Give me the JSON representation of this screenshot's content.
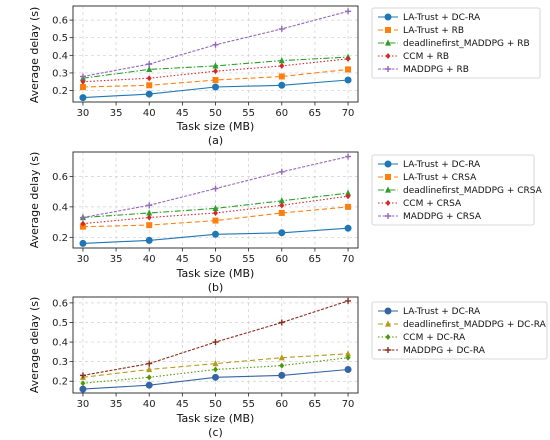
{
  "chart_data": [
    {
      "type": "line",
      "caption": "(a)",
      "xlabel": "Task size (MB)",
      "ylabel": "Average delay (s)",
      "x": [
        30,
        40,
        50,
        60,
        70
      ],
      "xticks": [
        30,
        35,
        40,
        45,
        50,
        55,
        60,
        65,
        70
      ],
      "xlim": [
        28.5,
        71.5
      ],
      "yticks": [
        0.2,
        0.3,
        0.4,
        0.5,
        0.6
      ],
      "ylim": [
        0.135,
        0.68
      ],
      "grid": true,
      "legend_position": "right",
      "series": [
        {
          "name": "LA-Trust + DC-RA",
          "color": "#1f77b4",
          "marker": "circle",
          "dash": "solid",
          "values": [
            0.16,
            0.18,
            0.22,
            0.23,
            0.26
          ]
        },
        {
          "name": "LA-Trust + RB",
          "color": "#ff7f0e",
          "marker": "square",
          "dash": "dashed",
          "values": [
            0.22,
            0.23,
            0.26,
            0.28,
            0.32
          ]
        },
        {
          "name": "deadlinefirst_MADDPG + RB",
          "color": "#2ca02c",
          "marker": "triangle",
          "dash": "dashdot",
          "values": [
            0.27,
            0.32,
            0.34,
            0.37,
            0.39
          ]
        },
        {
          "name": "CCM + RB",
          "color": "#d62728",
          "marker": "diamond",
          "dash": "dotted",
          "values": [
            0.25,
            0.27,
            0.31,
            0.34,
            0.38
          ]
        },
        {
          "name": "MADDPG + RB",
          "color": "#9467bd",
          "marker": "plus",
          "dash": "densedash",
          "values": [
            0.28,
            0.35,
            0.46,
            0.55,
            0.65
          ]
        }
      ]
    },
    {
      "type": "line",
      "caption": "(b)",
      "xlabel": "Task size (MB)",
      "ylabel": "Average delay (s)",
      "x": [
        30,
        40,
        50,
        60,
        70
      ],
      "xticks": [
        30,
        35,
        40,
        45,
        50,
        55,
        60,
        65,
        70
      ],
      "xlim": [
        28.5,
        71.5
      ],
      "yticks": [
        0.2,
        0.4,
        0.6
      ],
      "ylim": [
        0.13,
        0.76
      ],
      "grid": true,
      "legend_position": "right",
      "series": [
        {
          "name": "LA-Trust + DC-RA",
          "color": "#1f77b4",
          "marker": "circle",
          "dash": "solid",
          "values": [
            0.16,
            0.18,
            0.22,
            0.23,
            0.26
          ]
        },
        {
          "name": "LA-Trust + CRSA",
          "color": "#ff7f0e",
          "marker": "square",
          "dash": "dashed",
          "values": [
            0.27,
            0.28,
            0.31,
            0.36,
            0.4
          ]
        },
        {
          "name": "deadlinefirst_MADDPG + CRSA",
          "color": "#2ca02c",
          "marker": "triangle",
          "dash": "dashdot",
          "values": [
            0.33,
            0.36,
            0.39,
            0.44,
            0.49
          ]
        },
        {
          "name": "CCM + CRSA",
          "color": "#d62728",
          "marker": "diamond",
          "dash": "dotted",
          "values": [
            0.29,
            0.33,
            0.36,
            0.41,
            0.47
          ]
        },
        {
          "name": "MADDPG + CRSA",
          "color": "#9467bd",
          "marker": "plus",
          "dash": "densedash",
          "values": [
            0.33,
            0.41,
            0.52,
            0.63,
            0.73
          ]
        }
      ]
    },
    {
      "type": "line",
      "caption": "(c)",
      "xlabel": "Task size (MB)",
      "ylabel": "Average delay (s)",
      "x": [
        30,
        40,
        50,
        60,
        70
      ],
      "xticks": [
        30,
        35,
        40,
        45,
        50,
        55,
        60,
        65,
        70
      ],
      "xlim": [
        28.5,
        71.5
      ],
      "yticks": [
        0.2,
        0.3,
        0.4,
        0.5,
        0.6
      ],
      "ylim": [
        0.14,
        0.63
      ],
      "grid": true,
      "legend_position": "right",
      "series": [
        {
          "name": "LA-Trust + DC-RA",
          "color": "#3465a4",
          "marker": "circle",
          "dash": "solid",
          "values": [
            0.16,
            0.18,
            0.22,
            0.23,
            0.26
          ]
        },
        {
          "name": "deadlinefirst_MADDPG + DC-RA",
          "color": "#b59a1d",
          "marker": "triangle",
          "dash": "dashed",
          "values": [
            0.22,
            0.26,
            0.29,
            0.32,
            0.34
          ]
        },
        {
          "name": "CCM + DC-RA",
          "color": "#4e9a06",
          "marker": "diamond",
          "dash": "dotted",
          "values": [
            0.19,
            0.22,
            0.26,
            0.28,
            0.32
          ]
        },
        {
          "name": "MADDPG + DC-RA",
          "color": "#8b2b1a",
          "marker": "plus",
          "dash": "densedash",
          "values": [
            0.23,
            0.29,
            0.4,
            0.5,
            0.61
          ]
        }
      ]
    }
  ]
}
